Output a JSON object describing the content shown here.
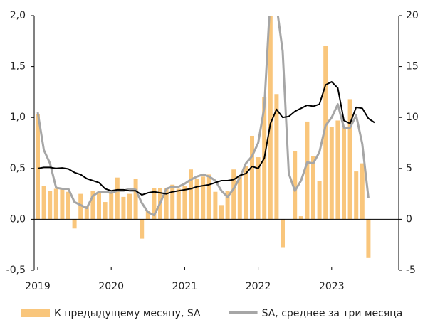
{
  "chart_data": {
    "type": "bar",
    "categories": [
      "2019",
      null,
      null,
      null,
      null,
      null,
      null,
      null,
      null,
      null,
      null,
      null,
      "2020",
      null,
      null,
      null,
      null,
      null,
      null,
      null,
      null,
      null,
      null,
      null,
      "2021",
      null,
      null,
      null,
      null,
      null,
      null,
      null,
      null,
      null,
      null,
      null,
      "2022",
      null,
      null,
      null,
      null,
      null,
      null,
      null,
      null,
      null,
      null,
      null,
      "2023",
      null,
      null,
      null,
      null,
      null,
      null,
      null
    ],
    "series": [
      {
        "name": "К предыдущему месяцу, SA",
        "type": "bar",
        "color": "#f9c67c",
        "values": [
          1.03,
          0.33,
          0.28,
          0.3,
          0.3,
          0.27,
          -0.09,
          0.25,
          0.13,
          0.28,
          0.27,
          0.17,
          0.26,
          0.41,
          0.22,
          0.25,
          0.4,
          -0.19,
          0.08,
          0.31,
          0.31,
          0.31,
          0.34,
          0.3,
          0.33,
          0.49,
          0.4,
          0.42,
          0.44,
          0.27,
          0.14,
          0.28,
          0.49,
          0.43,
          0.52,
          0.82,
          0.61,
          1.2,
          2.0,
          1.23,
          -0.28,
          0.0,
          0.67,
          0.03,
          0.96,
          0.62,
          0.38,
          1.7,
          0.91,
          0.97,
          0.9,
          1.18,
          0.47,
          0.55,
          -0.38,
          null
        ]
      },
      {
        "name": "SA, среднее за три месяца",
        "type": "line",
        "color": "#a6a6a6",
        "values": [
          1.05,
          0.68,
          0.55,
          0.31,
          0.3,
          0.3,
          0.17,
          0.14,
          0.11,
          0.23,
          0.27,
          0.27,
          0.26,
          0.28,
          0.28,
          0.3,
          0.29,
          0.16,
          0.07,
          0.04,
          0.16,
          0.3,
          0.32,
          0.32,
          0.35,
          0.39,
          0.42,
          0.44,
          0.42,
          0.38,
          0.28,
          0.22,
          0.3,
          0.41,
          0.55,
          0.62,
          0.75,
          1.1,
          2.2,
          2.1,
          1.65,
          0.45,
          0.28,
          0.38,
          0.56,
          0.55,
          0.66,
          0.92,
          1.0,
          1.13,
          0.9,
          0.9,
          1.02,
          0.74,
          0.21,
          null
        ]
      },
      {
        "type": "line",
        "axis": "y2",
        "color": "#000000",
        "values": [
          5.0,
          5.1,
          5.1,
          5.0,
          5.05,
          4.95,
          4.6,
          4.4,
          4.0,
          3.8,
          3.6,
          3.0,
          2.8,
          2.9,
          2.9,
          2.8,
          2.8,
          2.4,
          2.6,
          2.7,
          2.6,
          2.5,
          2.7,
          2.8,
          2.9,
          3.0,
          3.2,
          3.3,
          3.4,
          3.6,
          3.8,
          3.8,
          3.9,
          4.3,
          4.5,
          5.2,
          5.0,
          6.0,
          9.4,
          10.8,
          10.0,
          10.1,
          10.6,
          10.9,
          11.2,
          11.1,
          11.3,
          13.2,
          13.5,
          12.9,
          9.7,
          9.4,
          11.0,
          10.9,
          9.9,
          9.5
        ]
      }
    ],
    "ylim": [
      -0.5,
      2.0
    ],
    "yticks": [
      {
        "value": -0.5,
        "label": "-0,5"
      },
      {
        "value": 0,
        "label": "0,0"
      },
      {
        "value": 0.5,
        "label": "0,5"
      },
      {
        "value": 1.0,
        "label": "1,0"
      },
      {
        "value": 1.5,
        "label": "1,5"
      },
      {
        "value": 2.0,
        "label": "2,0"
      }
    ],
    "y2lim": [
      -5,
      20
    ],
    "y2ticks": [
      -5,
      0,
      5,
      10,
      15,
      20
    ],
    "legend": "bottom"
  }
}
